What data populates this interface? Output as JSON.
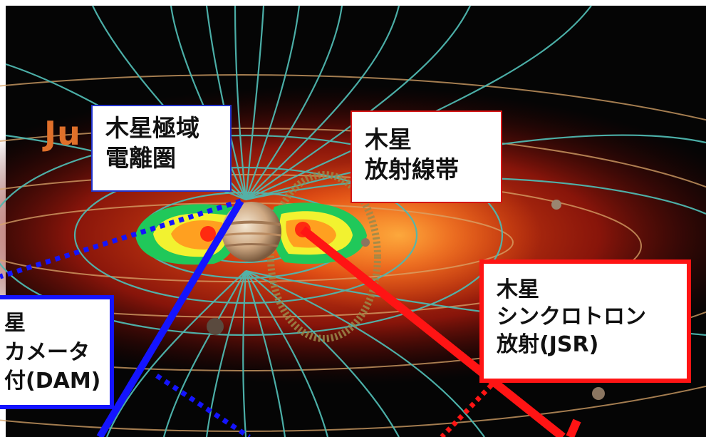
{
  "background_title_fragment": "Ju",
  "labels": {
    "ionosphere": {
      "line1": "木星極域",
      "line2": "電離圏"
    },
    "radiation_belt": {
      "line1": "木星",
      "line2": "放射線帯"
    },
    "jsr": {
      "line1": "木星",
      "line2": "シンクロトロン",
      "line3": "放射(JSR)"
    },
    "dam": {
      "line1": "星",
      "line2": "カメータ",
      "line3": "付(DAM)"
    }
  },
  "colors": {
    "space": "#050505",
    "field_lines": "#4fb8b0",
    "disk": "#d4240f",
    "orbits": "#d9a56a",
    "blue_link": "#1414ff",
    "red_link": "#ff1414"
  }
}
